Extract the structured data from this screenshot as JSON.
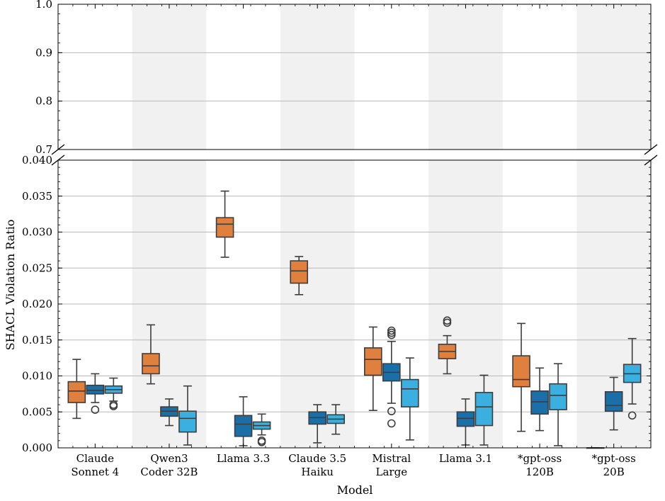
{
  "chart_data": {
    "type": "box",
    "xlabel": "Model",
    "ylabel": "SHACL Violation Ratio",
    "broken_axis": true,
    "upper_panel": {
      "ylim": [
        0.7,
        1.0
      ],
      "ticks": [
        "0.7",
        "0.8",
        "0.9",
        "1.0"
      ]
    },
    "lower_panel": {
      "ylim": [
        0.0,
        0.04
      ],
      "ticks": [
        "0.000",
        "0.005",
        "0.010",
        "0.015",
        "0.020",
        "0.025",
        "0.030",
        "0.035",
        "0.040"
      ]
    },
    "categories": [
      {
        "line1": "Claude",
        "line2": "Sonnet 4"
      },
      {
        "line1": "Qwen3",
        "line2": "Coder 32B"
      },
      {
        "line1": "Llama 3.3",
        "line2": ""
      },
      {
        "line1": "Claude 3.5",
        "line2": "Haiku"
      },
      {
        "line1": "Mistral",
        "line2": "Large"
      },
      {
        "line1": "Llama 3.1",
        "line2": ""
      },
      {
        "line1": "*gpt-oss",
        "line2": "120B"
      },
      {
        "line1": "*gpt-oss",
        "line2": "20B"
      }
    ],
    "series_colors": [
      "#e0803f",
      "#1a6fa8",
      "#3bb0e0"
    ],
    "band_color": "#f1f1f1",
    "boxes": [
      [
        {
          "wmin": 0.0041,
          "q1": 0.0063,
          "med": 0.0079,
          "q3": 0.0092,
          "wmax": 0.0123,
          "fliers": []
        },
        {
          "wmin": 0.0063,
          "q1": 0.0075,
          "med": 0.008,
          "q3": 0.0087,
          "wmax": 0.0103,
          "fliers": [
            0.0053
          ]
        },
        {
          "wmin": 0.0065,
          "q1": 0.0076,
          "med": 0.0081,
          "q3": 0.0086,
          "wmax": 0.0097,
          "fliers": [
            0.006,
            0.0058
          ]
        }
      ],
      [
        {
          "wmin": 0.0089,
          "q1": 0.0103,
          "med": 0.0114,
          "q3": 0.0131,
          "wmax": 0.0171,
          "fliers": []
        },
        {
          "wmin": 0.0031,
          "q1": 0.0044,
          "med": 0.0051,
          "q3": 0.0057,
          "wmax": 0.0068,
          "fliers": []
        },
        {
          "wmin": 0.0004,
          "q1": 0.0022,
          "med": 0.0041,
          "q3": 0.0051,
          "wmax": 0.0086,
          "fliers": []
        }
      ],
      [
        {
          "wmin": 0.0265,
          "q1": 0.0293,
          "med": 0.0311,
          "q3": 0.032,
          "wmax": 0.0357,
          "fliers": []
        },
        {
          "wmin": 0.0003,
          "q1": 0.0016,
          "med": 0.0033,
          "q3": 0.0045,
          "wmax": 0.0071,
          "fliers": []
        },
        {
          "wmin": 0.0018,
          "q1": 0.0026,
          "med": 0.0031,
          "q3": 0.0036,
          "wmax": 0.0047,
          "fliers": [
            0.001,
            0.0008
          ]
        }
      ],
      [
        {
          "wmin": 0.0213,
          "q1": 0.0229,
          "med": 0.0246,
          "q3": 0.026,
          "wmax": 0.0266,
          "fliers": []
        },
        {
          "wmin": 0.0007,
          "q1": 0.0033,
          "med": 0.0042,
          "q3": 0.005,
          "wmax": 0.006,
          "fliers": []
        },
        {
          "wmin": 0.0019,
          "q1": 0.0034,
          "med": 0.004,
          "q3": 0.0046,
          "wmax": 0.006,
          "fliers": []
        }
      ],
      [
        {
          "wmin": 0.0052,
          "q1": 0.0101,
          "med": 0.0123,
          "q3": 0.0139,
          "wmax": 0.0168,
          "fliers": []
        },
        {
          "wmin": 0.0062,
          "q1": 0.0093,
          "med": 0.0105,
          "q3": 0.0117,
          "wmax": 0.0148,
          "fliers": [
            0.0163,
            0.016,
            0.0157,
            0.0051,
            0.0034
          ]
        },
        {
          "wmin": 0.0011,
          "q1": 0.0057,
          "med": 0.0082,
          "q3": 0.0095,
          "wmax": 0.0125,
          "fliers": []
        }
      ],
      [
        {
          "wmin": 0.0103,
          "q1": 0.0124,
          "med": 0.0134,
          "q3": 0.0144,
          "wmax": 0.0156,
          "fliers": [
            0.0177,
            0.0174
          ]
        },
        {
          "wmin": 0.0004,
          "q1": 0.003,
          "med": 0.0041,
          "q3": 0.005,
          "wmax": 0.0068,
          "fliers": []
        },
        {
          "wmin": 0.0004,
          "q1": 0.0031,
          "med": 0.0057,
          "q3": 0.0077,
          "wmax": 0.0101,
          "fliers": []
        }
      ],
      [
        {
          "wmin": 0.0023,
          "q1": 0.0085,
          "med": 0.0095,
          "q3": 0.0128,
          "wmax": 0.0173,
          "fliers": []
        },
        {
          "wmin": 0.0024,
          "q1": 0.0047,
          "med": 0.0064,
          "q3": 0.0079,
          "wmax": 0.0111,
          "fliers": []
        },
        {
          "wmin": 0.0003,
          "q1": 0.0053,
          "med": 0.0073,
          "q3": 0.0089,
          "wmax": 0.0117,
          "fliers": []
        }
      ],
      [
        {
          "wmin": 0.0,
          "q1": 0.0,
          "med": 0.0,
          "q3": 0.0,
          "wmax": 0.0,
          "fliers": []
        },
        {
          "wmin": 0.0025,
          "q1": 0.0051,
          "med": 0.0059,
          "q3": 0.0078,
          "wmax": 0.0098,
          "fliers": []
        },
        {
          "wmin": 0.0061,
          "q1": 0.0091,
          "med": 0.0103,
          "q3": 0.0116,
          "wmax": 0.0152,
          "fliers": [
            0.0045
          ]
        }
      ]
    ]
  }
}
